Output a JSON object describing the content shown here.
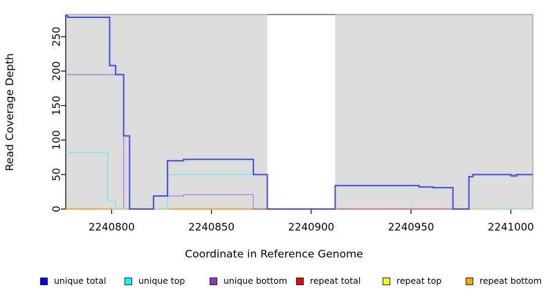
{
  "chart_data": {
    "type": "line",
    "title": "",
    "xlabel": "Coordinate in Reference Genome",
    "ylabel": "Read Coverage Depth",
    "xlim": [
      2240777,
      2241011
    ],
    "ylim": [
      0,
      282
    ],
    "x_ticks": [
      2240800,
      2240850,
      2240900,
      2240950,
      2241000
    ],
    "y_ticks": [
      0,
      50,
      100,
      150,
      200,
      250
    ],
    "grid": false,
    "legend_position": "bottom",
    "plot_background": "#DCDCDC",
    "plot_border_color": "#A9A9A9",
    "axis_color": "#000000",
    "missing_region": {
      "x_start": 2240878,
      "x_end": 2240912,
      "fill": "#FFFFFF",
      "top_border": "#8C8C8C"
    },
    "baseline_segments": [
      {
        "color": "#90E89A",
        "y": 0,
        "x_start": 2240800,
        "x_end": 2240828
      },
      {
        "color": "#90E89A",
        "y": 0,
        "x_start": 2240979,
        "x_end": 2241011
      }
    ],
    "series": [
      {
        "name": "repeat top",
        "color": "#F2F230",
        "width": 1.2,
        "points": [
          [
            2240777,
            0
          ],
          [
            2241011,
            0
          ]
        ]
      },
      {
        "name": "repeat bottom",
        "color": "#FF9010",
        "width": 1.5,
        "points": [
          [
            2240777,
            0
          ],
          [
            2240878,
            0
          ]
        ]
      },
      {
        "name": "unique bottom",
        "color": "#AF7BE4",
        "width": 1.3,
        "points": [
          [
            2240777,
            195
          ],
          [
            2240806,
            0
          ],
          [
            2240821,
            19
          ],
          [
            2240836,
            21
          ],
          [
            2240871,
            0
          ],
          [
            2240979,
            47
          ],
          [
            2240981,
            50
          ],
          [
            2241011,
            50
          ]
        ]
      },
      {
        "name": "repeat total",
        "color": "#DD4455",
        "width": 1.2,
        "points": [
          [
            2240871,
            0
          ],
          [
            2240979,
            0
          ]
        ]
      },
      {
        "name": "unique top",
        "color": "#6FEBEB",
        "width": 1.3,
        "points": [
          [
            2240777,
            82
          ],
          [
            2240798,
            12
          ],
          [
            2240802,
            0
          ],
          [
            2240828,
            50
          ],
          [
            2240878,
            0
          ],
          [
            2240913,
            0
          ]
        ]
      },
      {
        "name": "unique total",
        "color": "#3D52E0",
        "width": 2,
        "points": [
          [
            2240777,
            280
          ],
          [
            2240778,
            278
          ],
          [
            2240799,
            208
          ],
          [
            2240802,
            195
          ],
          [
            2240806,
            106
          ],
          [
            2240809,
            0
          ],
          [
            2240821,
            19
          ],
          [
            2240828,
            70
          ],
          [
            2240836,
            72
          ],
          [
            2240871,
            50
          ],
          [
            2240878,
            0
          ],
          [
            2240912,
            34
          ],
          [
            2240954,
            32
          ],
          [
            2240961,
            31
          ],
          [
            2240971,
            0
          ],
          [
            2240979,
            47
          ],
          [
            2240981,
            50
          ],
          [
            2241000,
            48
          ],
          [
            2241003,
            50
          ],
          [
            2241011,
            50
          ]
        ]
      }
    ],
    "legend": [
      {
        "label": "unique total",
        "color": "#0000EE"
      },
      {
        "label": "unique top",
        "color": "#00FFFF"
      },
      {
        "label": "unique bottom",
        "color": "#9932CC"
      },
      {
        "label": "repeat total",
        "color": "#EE0000"
      },
      {
        "label": "repeat top",
        "color": "#FFFF00"
      },
      {
        "label": "repeat bottom",
        "color": "#FFA500"
      }
    ]
  }
}
